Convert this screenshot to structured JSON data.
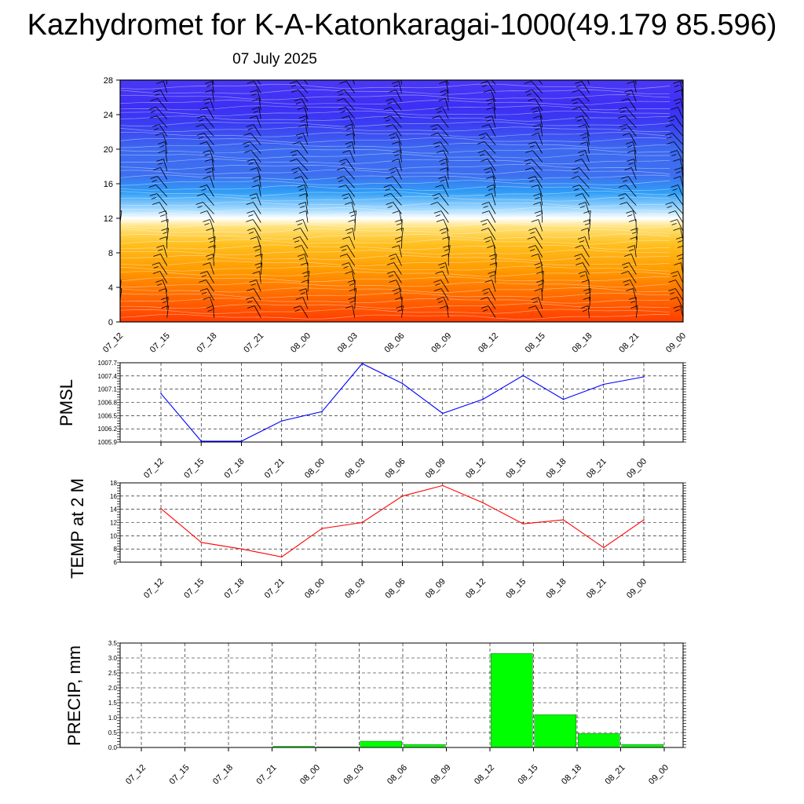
{
  "title": "Kazhydromet for K-A-Katonkaragai-1000(49.179 85.596)",
  "subtitle": "07 July 2025",
  "colors": {
    "pmsl_line": "#0000ff",
    "temp_line": "#ff0000",
    "precip_bar": "#00ff00",
    "wind_barb": "#000000"
  },
  "chart_data": [
    {
      "type": "heatmap",
      "name": "vertical-profile",
      "x_ticks": [
        "07_12",
        "07_15",
        "07_18",
        "07_21",
        "08_00",
        "08_03",
        "08_06",
        "08_09",
        "08_12",
        "08_15",
        "08_18",
        "08_21",
        "09_00"
      ],
      "y_ticks": [
        "0",
        "4",
        "8",
        "12",
        "16",
        "20",
        "24",
        "28"
      ],
      "ylim": [
        0,
        28
      ],
      "color_bands": [
        {
          "y": 0,
          "color": "#ff3d00"
        },
        {
          "y": 3,
          "color": "#ff6a00"
        },
        {
          "y": 6,
          "color": "#ff9b00"
        },
        {
          "y": 9,
          "color": "#ffc020"
        },
        {
          "y": 11,
          "color": "#ffe27a"
        },
        {
          "y": 12,
          "color": "#ffffff"
        },
        {
          "y": 13,
          "color": "#a8dcff"
        },
        {
          "y": 15,
          "color": "#2f9ef6"
        },
        {
          "y": 17,
          "color": "#3d6ff0"
        },
        {
          "y": 20,
          "color": "#3d6af0"
        },
        {
          "y": 23,
          "color": "#3a3cf2"
        },
        {
          "y": 25,
          "color": "#3d2ff4"
        },
        {
          "y": 28,
          "color": "#4a38f5"
        }
      ],
      "wind_barbs": "shown"
    },
    {
      "type": "line",
      "name": "pmsl",
      "ylabel": "PMSL",
      "categories": [
        "07_12",
        "07_15",
        "07_18",
        "07_21",
        "08_00",
        "08_03",
        "08_06",
        "08_09",
        "08_12",
        "08_15",
        "08_18",
        "08_21",
        "09_00"
      ],
      "values": [
        1007.0,
        1005.92,
        1005.92,
        1006.38,
        1006.59,
        1007.68,
        1007.23,
        1006.55,
        1006.87,
        1007.41,
        1006.87,
        1007.21,
        1007.38
      ],
      "y_ticks": [
        "1005.9",
        "1006.2",
        "1006.5",
        "1006.8",
        "1007.1",
        "1007.4",
        "1007.7"
      ],
      "ylim": [
        1005.9,
        1007.7
      ],
      "grid": true
    },
    {
      "type": "line",
      "name": "temp",
      "ylabel": "TEMP at 2 M",
      "categories": [
        "07_12",
        "07_15",
        "07_18",
        "07_21",
        "08_00",
        "08_03",
        "08_06",
        "08_09",
        "08_12",
        "08_15",
        "08_18",
        "08_21",
        "09_00"
      ],
      "values": [
        14.1,
        9.0,
        8.0,
        6.8,
        11.1,
        12.0,
        16.0,
        17.6,
        15.0,
        11.8,
        12.4,
        8.2,
        12.4
      ],
      "y_ticks": [
        "6",
        "8",
        "10",
        "12",
        "14",
        "16",
        "18"
      ],
      "ylim": [
        6,
        18
      ],
      "grid": true
    },
    {
      "type": "bar",
      "name": "precip",
      "ylabel": "PRECIP, mm",
      "categories": [
        "07_12",
        "07_15",
        "07_18",
        "07_21",
        "08_00",
        "08_03",
        "08_06",
        "08_09",
        "08_12",
        "08_15",
        "08_18",
        "08_21",
        "09_00"
      ],
      "values": [
        0,
        0,
        0,
        0.04,
        0.02,
        0.21,
        0.1,
        0,
        3.15,
        1.1,
        0.47,
        0.1,
        0
      ],
      "y_ticks": [
        "0.0",
        "0.5",
        "1.0",
        "1.5",
        "2.0",
        "2.5",
        "3.0",
        "3.5"
      ],
      "ylim": [
        0,
        3.5
      ],
      "grid": true
    }
  ]
}
